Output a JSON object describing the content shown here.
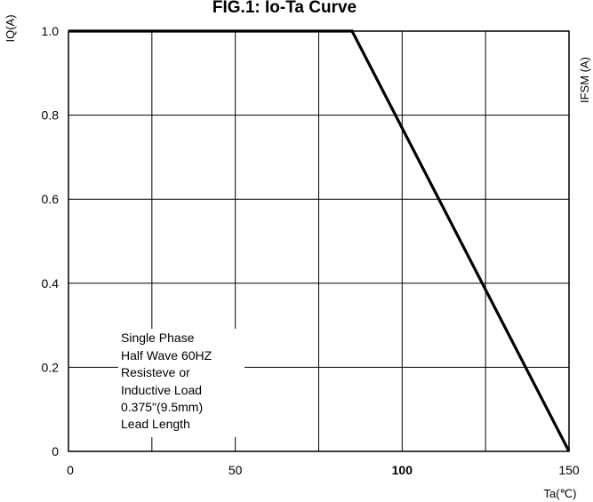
{
  "chart_data": {
    "type": "line",
    "title": "FIG.1: Io-Ta Curve",
    "xlabel": "Ta(℃)",
    "ylabel": "IQ(A)",
    "right_ylabel": "IFSM  (A)",
    "xlim": [
      0,
      150
    ],
    "ylim": [
      0,
      1.0
    ],
    "x_ticks": [
      {
        "value": 0,
        "label": "0",
        "bold": false
      },
      {
        "value": 50,
        "label": "50",
        "bold": false
      },
      {
        "value": 100,
        "label": "100",
        "bold": true
      },
      {
        "value": 150,
        "label": "150",
        "bold": false
      }
    ],
    "y_ticks": [
      {
        "value": 0,
        "label": "0"
      },
      {
        "value": 0.2,
        "label": "0.2"
      },
      {
        "value": 0.4,
        "label": "0.4"
      },
      {
        "value": 0.6,
        "label": "0.6"
      },
      {
        "value": 0.8,
        "label": "0.8"
      },
      {
        "value": 1.0,
        "label": "1.0"
      }
    ],
    "grid_x": [
      0,
      25,
      50,
      75,
      100,
      125,
      150
    ],
    "grid_y": [
      0,
      0.2,
      0.4,
      0.6,
      0.8,
      1.0
    ],
    "grid": true,
    "series": [
      {
        "x": [
          0,
          85,
          150
        ],
        "y": [
          1.0,
          1.0,
          0
        ]
      }
    ],
    "annotation": {
      "lines": [
        "Single Phase",
        "Half Wave 60HZ",
        "Resisteve or",
        "Inductive Load",
        "0.375\"(9.5mm)",
        "Lead Length"
      ]
    },
    "colors": {
      "line": "#000000",
      "grid": "#000000",
      "background": "#ffffff"
    }
  }
}
